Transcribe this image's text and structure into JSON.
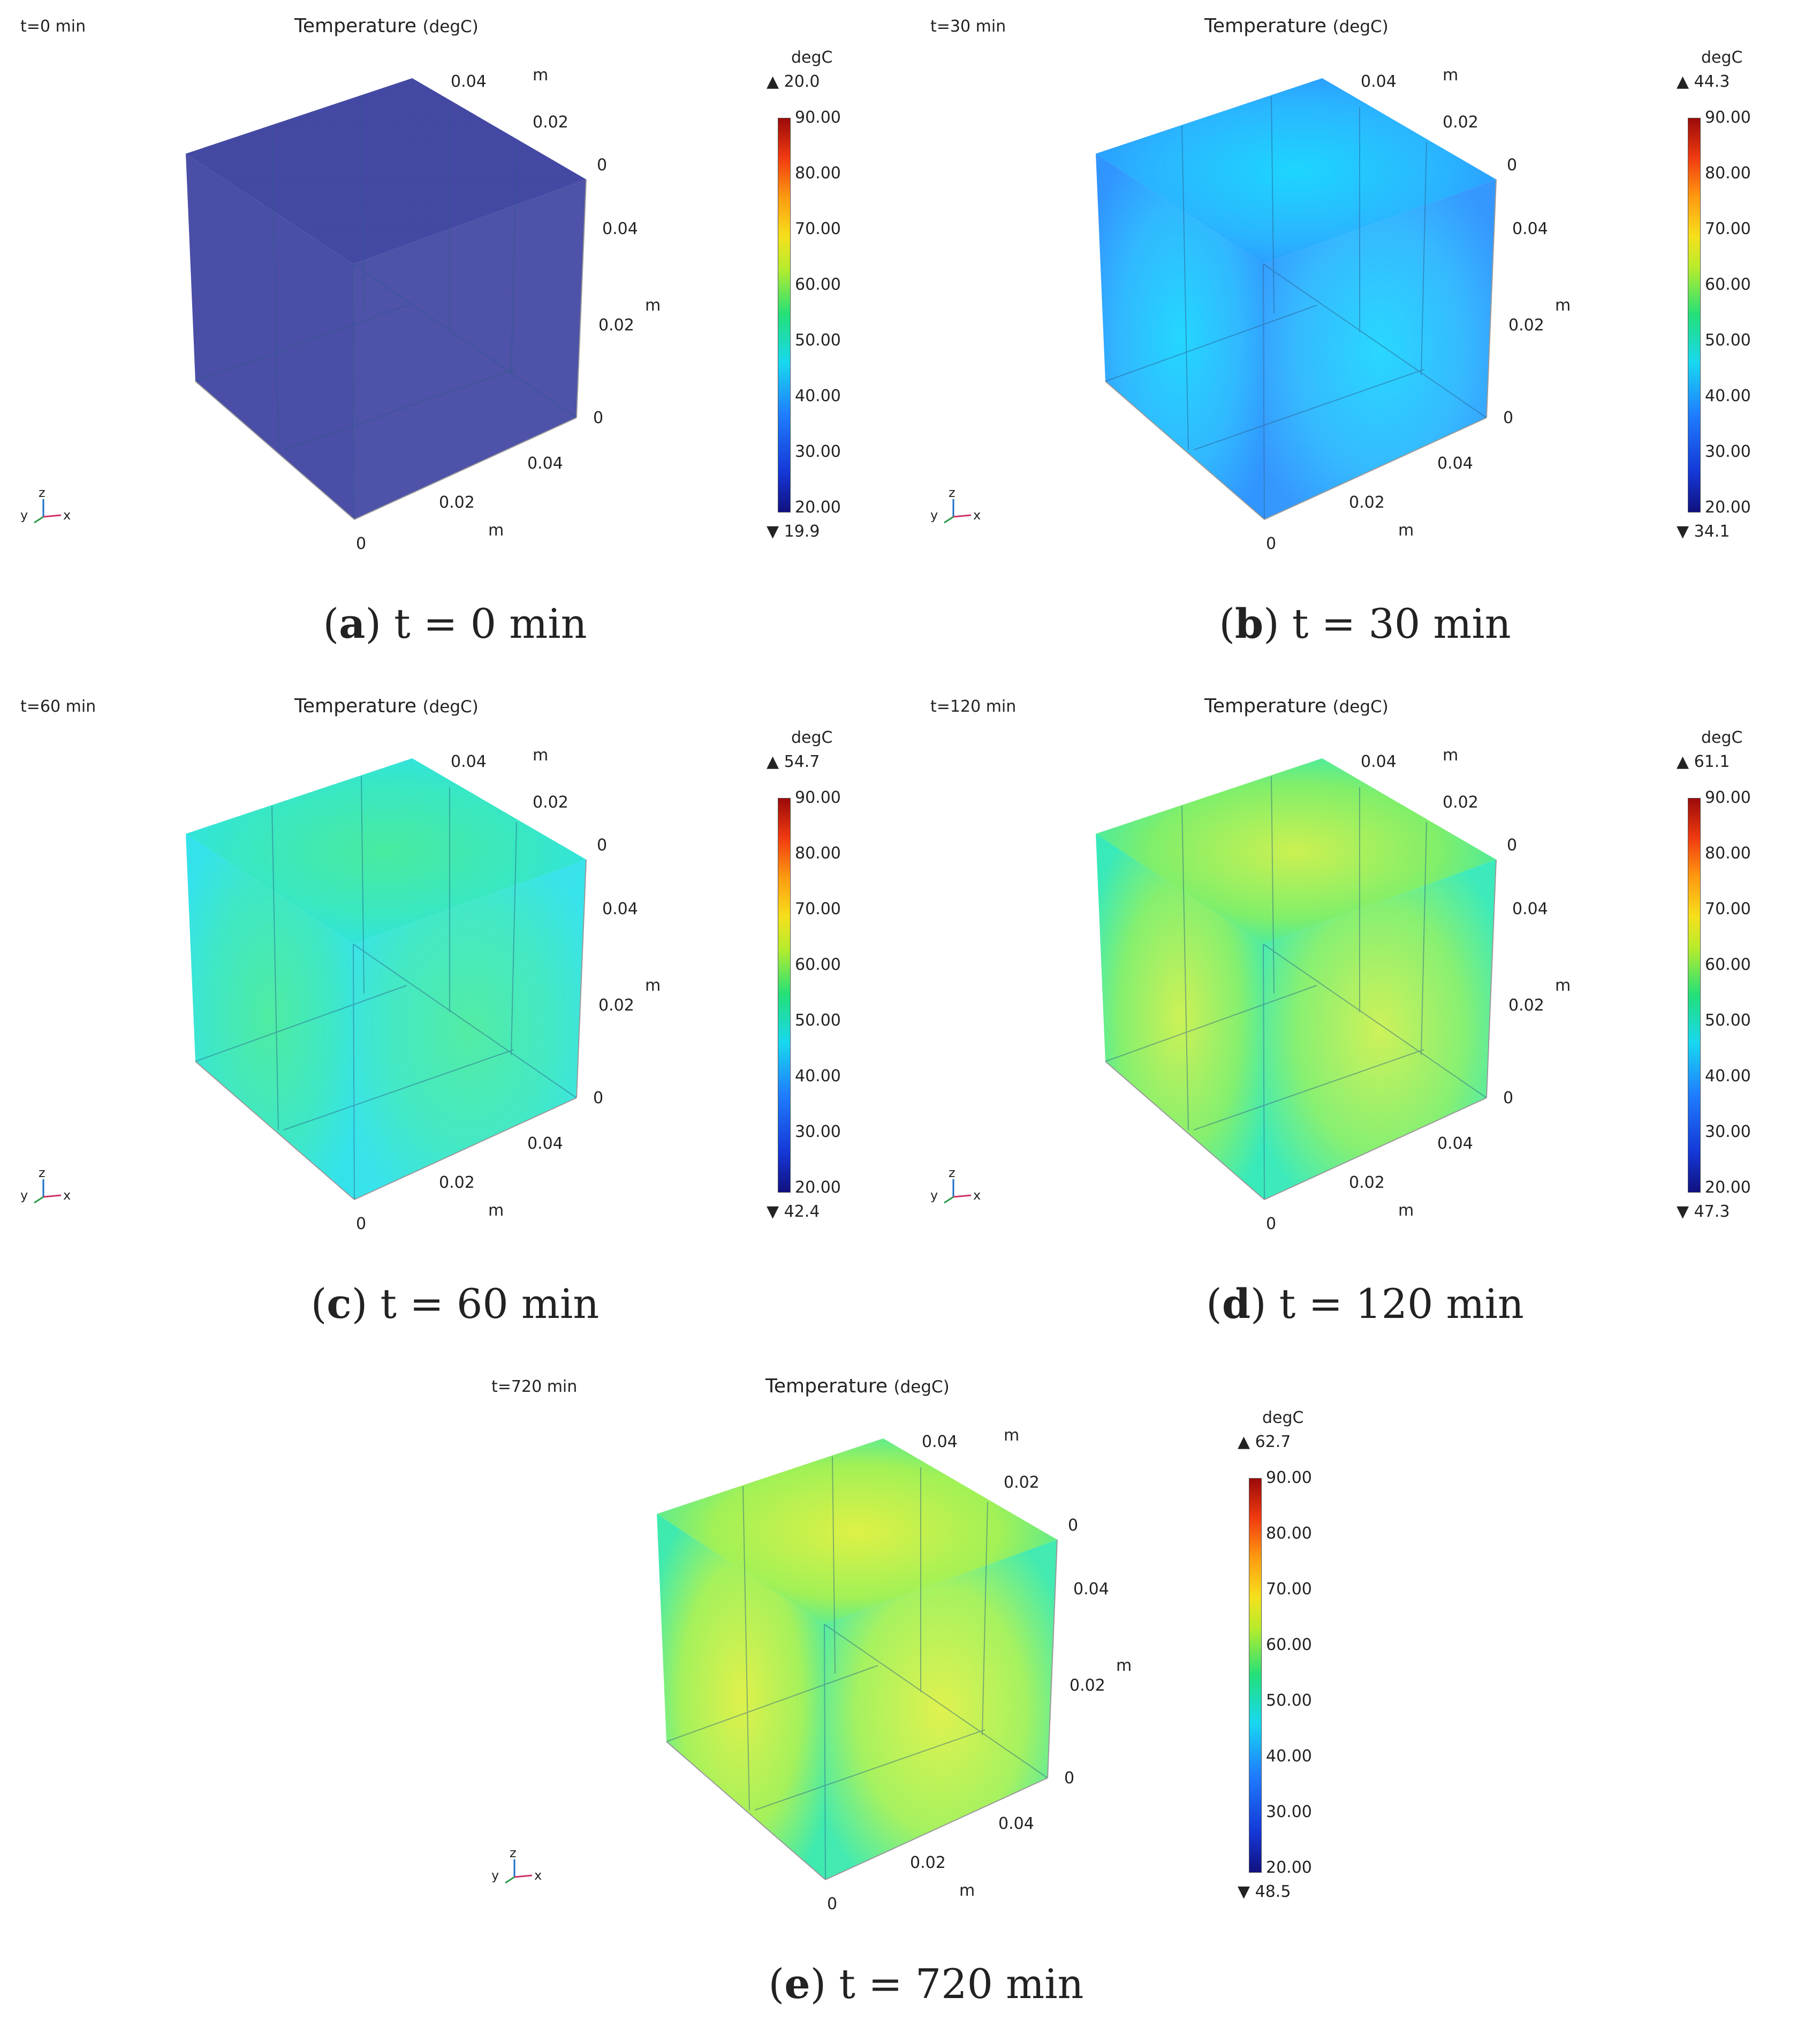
{
  "common": {
    "title": "Temperature",
    "title_unit": "(degC)",
    "unit": "degC",
    "colorbar_ticks": [
      "90.00",
      "80.00",
      "70.00",
      "60.00",
      "50.00",
      "40.00",
      "30.00",
      "20.00"
    ],
    "axis_unit": "m",
    "axis_ticks": {
      "zero": "0",
      "mid": "0.02",
      "far": "0.04"
    },
    "triad": {
      "x": "x",
      "y": "y",
      "z": "z"
    },
    "colors": {
      "min_blue": "#11117f",
      "mid_cyan": "#18d8f0",
      "mid_green": "#22e07a",
      "hot_yellow": "#d8f03a",
      "max_red": "#9b0a0a"
    }
  },
  "panels": [
    {
      "id": "a",
      "time_label": "t=0 min",
      "max": "20.0",
      "min": "19.9",
      "caption_letter": "a",
      "caption_text": "t = 0 min",
      "edge": "#3a3f9e",
      "face": "#3a3f9e",
      "hot": "#3a3f9e"
    },
    {
      "id": "b",
      "time_label": "t=30 min",
      "max": "44.3",
      "min": "34.1",
      "caption_letter": "b",
      "caption_text": "t = 30 min",
      "edge": "#1f8cff",
      "face": "#1fb2ff",
      "hot": "#11d3ff"
    },
    {
      "id": "c",
      "time_label": "t=60 min",
      "max": "54.7",
      "min": "42.4",
      "caption_letter": "c",
      "caption_text": "t = 60 min",
      "edge": "#22e0ea",
      "face": "#2ee6c0",
      "hot": "#40ea9a"
    },
    {
      "id": "d",
      "time_label": "t=120 min",
      "max": "61.1",
      "min": "47.3",
      "caption_letter": "d",
      "caption_text": "t = 120 min",
      "edge": "#27e8b4",
      "face": "#7aee62",
      "hot": "#c8f048"
    },
    {
      "id": "e",
      "time_label": "t=720 min",
      "max": "62.7",
      "min": "48.5",
      "caption_letter": "e",
      "caption_text": "t = 720 min",
      "edge": "#2ee8a8",
      "face": "#9cf04e",
      "hot": "#dcf03c"
    }
  ]
}
